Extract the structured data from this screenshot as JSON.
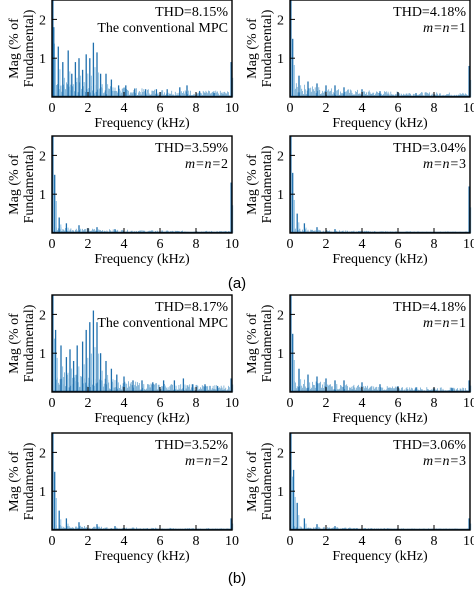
{
  "figure": {
    "captions": [
      "(a)",
      "(b)"
    ]
  },
  "chart_data": [
    {
      "type": "bar",
      "group": "a",
      "panel": 1,
      "thd": "THD=8.15%",
      "method": "The conventional MPC",
      "method_italic": false,
      "xlabel": "Frequency (kHz)",
      "ylabel": [
        "Mag (% of",
        "Fundamental)"
      ],
      "xlim": [
        0,
        10
      ],
      "ylim": [
        0,
        2.5
      ],
      "xticks": [
        "0",
        "2",
        "4",
        "6",
        "8",
        "10"
      ],
      "yticks": [
        "1",
        "2"
      ],
      "peaks": [
        [
          0.05,
          2.5
        ],
        [
          0.1,
          1.8
        ],
        [
          0.35,
          1.3
        ],
        [
          0.6,
          0.9
        ],
        [
          0.9,
          1.2
        ],
        [
          1.1,
          0.6
        ],
        [
          1.3,
          0.9
        ],
        [
          1.5,
          1.0
        ],
        [
          1.7,
          0.7
        ],
        [
          1.9,
          1.1
        ],
        [
          2.1,
          1.0
        ],
        [
          2.3,
          1.4
        ],
        [
          2.5,
          1.15
        ],
        [
          2.7,
          0.6
        ],
        [
          3.0,
          0.6
        ],
        [
          3.3,
          0.45
        ],
        [
          3.7,
          0.3
        ],
        [
          4.1,
          0.3
        ],
        [
          4.6,
          0.22
        ],
        [
          5.2,
          0.2
        ],
        [
          5.8,
          0.2
        ],
        [
          6.4,
          0.2
        ],
        [
          7.1,
          0.25
        ],
        [
          7.5,
          0.3
        ],
        [
          8.2,
          0.15
        ],
        [
          9.0,
          0.1
        ],
        [
          9.95,
          0.9
        ]
      ],
      "noise_floor": 0.35
    },
    {
      "type": "bar",
      "group": "a",
      "panel": 2,
      "thd": "THD=4.18%",
      "method": "m=n=1",
      "method_italic": true,
      "xlabel": "Frequency (kHz)",
      "ylabel": [
        "Mag (% of",
        "Fundamental)"
      ],
      "xlim": [
        0,
        10
      ],
      "ylim": [
        0,
        2.5
      ],
      "xticks": [
        "0",
        "2",
        "4",
        "6",
        "8",
        "10"
      ],
      "yticks": [
        "1",
        "2"
      ],
      "peaks": [
        [
          0.05,
          2.5
        ],
        [
          0.15,
          1.5
        ],
        [
          0.5,
          0.55
        ],
        [
          1.0,
          0.4
        ],
        [
          1.5,
          0.35
        ],
        [
          2.0,
          0.3
        ],
        [
          2.5,
          0.3
        ],
        [
          3.0,
          0.25
        ],
        [
          4.0,
          0.2
        ],
        [
          5.0,
          0.15
        ],
        [
          6.0,
          0.12
        ],
        [
          7.0,
          0.1
        ],
        [
          8.0,
          0.08
        ],
        [
          9.95,
          0.8
        ]
      ],
      "noise_floor": 0.25
    },
    {
      "type": "bar",
      "group": "a",
      "panel": 3,
      "thd": "THD=3.59%",
      "method": "m=n=2",
      "method_italic": true,
      "xlabel": "Frequency (kHz)",
      "ylabel": [
        "Mag (% of",
        "Fundamental)"
      ],
      "xlim": [
        0,
        10
      ],
      "ylim": [
        0,
        2.5
      ],
      "xticks": [
        "0",
        "2",
        "4",
        "6",
        "8",
        "10"
      ],
      "yticks": [
        "1",
        "2"
      ],
      "peaks": [
        [
          0.05,
          2.5
        ],
        [
          0.15,
          1.5
        ],
        [
          0.4,
          0.4
        ],
        [
          0.8,
          0.25
        ],
        [
          1.5,
          0.2
        ],
        [
          2.5,
          0.15
        ],
        [
          3.5,
          0.1
        ],
        [
          9.95,
          1.3
        ]
      ],
      "noise_floor": 0.12
    },
    {
      "type": "bar",
      "group": "a",
      "panel": 4,
      "thd": "THD=3.04%",
      "method": "m=n=3",
      "method_italic": true,
      "xlabel": "Frequency (kHz)",
      "ylabel": [
        "Mag (% of",
        "Fundamental)"
      ],
      "xlim": [
        0,
        10
      ],
      "ylim": [
        0,
        2.5
      ],
      "xticks": [
        "0",
        "2",
        "4",
        "6",
        "8",
        "10"
      ],
      "yticks": [
        "1",
        "2"
      ],
      "peaks": [
        [
          0.05,
          2.5
        ],
        [
          0.15,
          1.55
        ],
        [
          0.4,
          0.5
        ],
        [
          0.8,
          0.25
        ],
        [
          1.5,
          0.15
        ],
        [
          2.5,
          0.1
        ],
        [
          9.95,
          1.2
        ]
      ],
      "noise_floor": 0.08
    },
    {
      "type": "bar",
      "group": "b",
      "panel": 1,
      "thd": "THD=8.17%",
      "method": "The conventional MPC",
      "method_italic": false,
      "xlabel": "Frequency (kHz)",
      "ylabel": [
        "Mag (% of",
        "Fundamental)"
      ],
      "xlim": [
        0,
        10
      ],
      "ylim": [
        0,
        2.5
      ],
      "xticks": [
        "0",
        "2",
        "4",
        "6",
        "8",
        "10"
      ],
      "yticks": [
        "1",
        "2"
      ],
      "peaks": [
        [
          0.05,
          2.5
        ],
        [
          0.2,
          1.6
        ],
        [
          0.5,
          1.2
        ],
        [
          0.8,
          0.9
        ],
        [
          1.0,
          1.1
        ],
        [
          1.2,
          0.8
        ],
        [
          1.4,
          1.2
        ],
        [
          1.7,
          1.3
        ],
        [
          1.9,
          1.6
        ],
        [
          2.1,
          1.8
        ],
        [
          2.3,
          2.1
        ],
        [
          2.5,
          1.8
        ],
        [
          2.7,
          1.0
        ],
        [
          3.0,
          0.8
        ],
        [
          3.3,
          0.6
        ],
        [
          3.6,
          0.45
        ],
        [
          4.0,
          0.4
        ],
        [
          4.5,
          0.3
        ],
        [
          5.0,
          0.3
        ],
        [
          5.6,
          0.25
        ],
        [
          6.2,
          0.3
        ],
        [
          6.8,
          0.3
        ],
        [
          7.3,
          0.35
        ],
        [
          7.8,
          0.2
        ],
        [
          8.5,
          0.2
        ],
        [
          9.2,
          0.15
        ],
        [
          9.95,
          0.35
        ]
      ],
      "noise_floor": 0.4
    },
    {
      "type": "bar",
      "group": "b",
      "panel": 2,
      "thd": "THD=4.18%",
      "method": "m=n=1",
      "method_italic": true,
      "xlabel": "Frequency (kHz)",
      "ylabel": [
        "Mag (% of",
        "Fundamental)"
      ],
      "xlim": [
        0,
        10
      ],
      "ylim": [
        0,
        2.5
      ],
      "xticks": [
        "0",
        "2",
        "4",
        "6",
        "8",
        "10"
      ],
      "yticks": [
        "1",
        "2"
      ],
      "peaks": [
        [
          0.05,
          2.5
        ],
        [
          0.15,
          1.5
        ],
        [
          0.5,
          0.6
        ],
        [
          1.0,
          0.45
        ],
        [
          1.5,
          0.4
        ],
        [
          2.0,
          0.35
        ],
        [
          2.5,
          0.3
        ],
        [
          3.0,
          0.3
        ],
        [
          4.0,
          0.25
        ],
        [
          5.0,
          0.2
        ],
        [
          6.0,
          0.15
        ],
        [
          7.0,
          0.12
        ],
        [
          8.0,
          0.1
        ],
        [
          9.0,
          0.1
        ],
        [
          9.95,
          0.3
        ]
      ],
      "noise_floor": 0.25
    },
    {
      "type": "bar",
      "group": "b",
      "panel": 3,
      "thd": "THD=3.52%",
      "method": "m=n=2",
      "method_italic": true,
      "xlabel": "Frequency (kHz)",
      "ylabel": [
        "Mag (% of",
        "Fundamental)"
      ],
      "xlim": [
        0,
        10
      ],
      "ylim": [
        0,
        2.5
      ],
      "xticks": [
        "0",
        "2",
        "4",
        "6",
        "8",
        "10"
      ],
      "yticks": [
        "1",
        "2"
      ],
      "peaks": [
        [
          0.05,
          2.5
        ],
        [
          0.15,
          1.5
        ],
        [
          0.4,
          0.5
        ],
        [
          0.8,
          0.3
        ],
        [
          1.5,
          0.2
        ],
        [
          2.5,
          0.15
        ],
        [
          3.5,
          0.1
        ],
        [
          9.95,
          0.3
        ]
      ],
      "noise_floor": 0.1
    },
    {
      "type": "bar",
      "group": "b",
      "panel": 4,
      "thd": "THD=3.06%",
      "method": "m=n=3",
      "method_italic": true,
      "xlabel": "Frequency (kHz)",
      "ylabel": [
        "Mag (% of",
        "Fundamental)"
      ],
      "xlim": [
        0,
        10
      ],
      "ylim": [
        0,
        2.5
      ],
      "xticks": [
        "0",
        "2",
        "4",
        "6",
        "8",
        "10"
      ],
      "yticks": [
        "1",
        "2"
      ],
      "peaks": [
        [
          0.05,
          2.5
        ],
        [
          0.2,
          1.55
        ],
        [
          0.4,
          0.7
        ],
        [
          0.8,
          0.3
        ],
        [
          1.5,
          0.15
        ],
        [
          2.5,
          0.1
        ],
        [
          9.95,
          0.3
        ]
      ],
      "noise_floor": 0.08
    }
  ]
}
